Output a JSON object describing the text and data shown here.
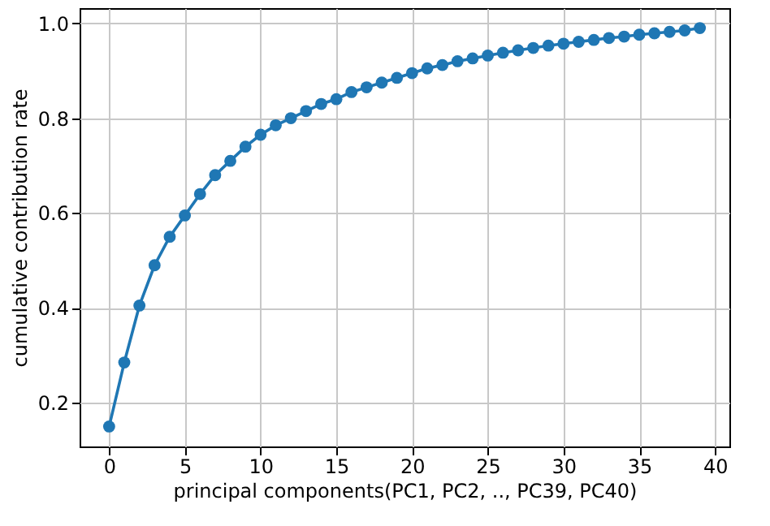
{
  "chart_data": {
    "type": "line",
    "xlabel": "principal components(PC1, PC2, .., PC39, PC40)",
    "ylabel": "cumulative contribution rate",
    "x": [
      0,
      1,
      2,
      3,
      4,
      5,
      6,
      7,
      8,
      9,
      10,
      11,
      12,
      13,
      14,
      15,
      16,
      17,
      18,
      19,
      20,
      21,
      22,
      23,
      24,
      25,
      26,
      27,
      28,
      29,
      30,
      31,
      32,
      33,
      34,
      35,
      36,
      37,
      38,
      39
    ],
    "series": [
      {
        "color": "#1f77b4",
        "values": [
          0.15,
          0.285,
          0.405,
          0.49,
          0.55,
          0.595,
          0.64,
          0.68,
          0.71,
          0.74,
          0.765,
          0.785,
          0.8,
          0.815,
          0.83,
          0.84,
          0.855,
          0.865,
          0.875,
          0.885,
          0.895,
          0.905,
          0.912,
          0.92,
          0.926,
          0.932,
          0.938,
          0.943,
          0.948,
          0.953,
          0.957,
          0.961,
          0.965,
          0.969,
          0.972,
          0.976,
          0.979,
          0.982,
          0.985,
          0.99
        ]
      }
    ],
    "xlim": [
      -1.95,
      40.95
    ],
    "ylim": [
      0.108,
      1.032
    ],
    "xticks": [
      0,
      5,
      10,
      15,
      20,
      25,
      30,
      35,
      40
    ],
    "yticks": [
      0.2,
      0.4,
      0.6,
      0.8,
      {
        "value": 1,
        "label": "1.0"
      }
    ],
    "grid": true,
    "marker": "circle",
    "line_style": "solid"
  }
}
